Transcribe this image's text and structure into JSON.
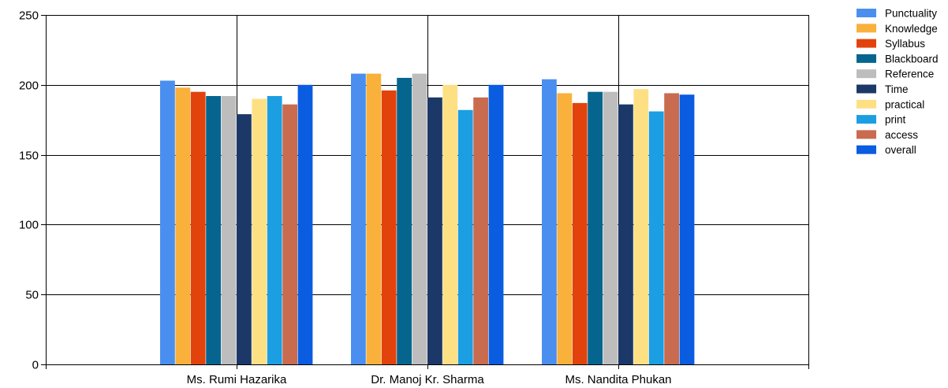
{
  "chart_data": {
    "type": "bar",
    "categories": [
      "Ms. Rumi Hazarika",
      "Dr. Manoj Kr. Sharma",
      "Ms. Nandita Phukan"
    ],
    "series": [
      {
        "name": "Punctuality",
        "color": "#4a8ff0",
        "values": [
          203,
          208,
          204
        ]
      },
      {
        "name": "Knowledge",
        "color": "#f9b13b",
        "values": [
          198,
          208,
          194
        ]
      },
      {
        "name": "Syllabus",
        "color": "#e2430c",
        "values": [
          195,
          196,
          187
        ]
      },
      {
        "name": "Blackboard",
        "color": "#05658f",
        "values": [
          192,
          205,
          195
        ]
      },
      {
        "name": "Reference",
        "color": "#bdbdbd",
        "values": [
          192,
          208,
          195
        ]
      },
      {
        "name": "Time",
        "color": "#1c3868",
        "values": [
          179,
          191,
          186
        ]
      },
      {
        "name": "practical",
        "color": "#fee084",
        "values": [
          190,
          200,
          197
        ]
      },
      {
        "name": "print",
        "color": "#1c9ee2",
        "values": [
          192,
          182,
          181
        ]
      },
      {
        "name": "access",
        "color": "#c96b4e",
        "values": [
          186,
          191,
          194
        ]
      },
      {
        "name": "overall",
        "color": "#0a5ce0",
        "values": [
          200,
          200,
          193
        ]
      }
    ],
    "ylim": [
      0,
      250
    ],
    "yticks": [
      0,
      50,
      100,
      150,
      200,
      250
    ],
    "title": "",
    "xlabel": "",
    "ylabel": "",
    "grid": true,
    "legend_position": "top-right"
  }
}
